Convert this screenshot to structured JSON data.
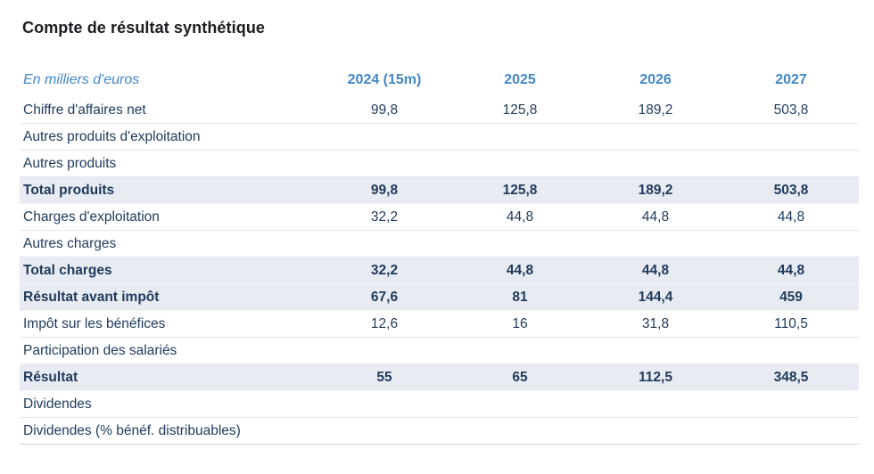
{
  "title": "Compte de résultat synthétique",
  "table": {
    "unit_label": "En milliers d'euros",
    "columns": [
      "2024 (15m)",
      "2025",
      "2026",
      "2027"
    ],
    "rows": [
      {
        "label": "Chiffre d'affaires net",
        "values": [
          "99,8",
          "125,8",
          "189,2",
          "503,8"
        ],
        "emphasis": false
      },
      {
        "label": "Autres produits d'exploitation",
        "values": [
          "",
          "",
          "",
          ""
        ],
        "emphasis": false
      },
      {
        "label": "Autres produits",
        "values": [
          "",
          "",
          "",
          ""
        ],
        "emphasis": false
      },
      {
        "label": "Total produits",
        "values": [
          "99,8",
          "125,8",
          "189,2",
          "503,8"
        ],
        "emphasis": true
      },
      {
        "label": "Charges d'exploitation",
        "values": [
          "32,2",
          "44,8",
          "44,8",
          "44,8"
        ],
        "emphasis": false
      },
      {
        "label": "Autres charges",
        "values": [
          "",
          "",
          "",
          ""
        ],
        "emphasis": false
      },
      {
        "label": "Total charges",
        "values": [
          "32,2",
          "44,8",
          "44,8",
          "44,8"
        ],
        "emphasis": true
      },
      {
        "label": "Résultat avant impôt",
        "values": [
          "67,6",
          "81",
          "144,4",
          "459"
        ],
        "emphasis": true
      },
      {
        "label": "Impôt sur les bénéfices",
        "values": [
          "12,6",
          "16",
          "31,8",
          "110,5"
        ],
        "emphasis": false
      },
      {
        "label": "Participation des salariés",
        "values": [
          "",
          "",
          "",
          ""
        ],
        "emphasis": false
      },
      {
        "label": "Résultat",
        "values": [
          "55",
          "65",
          "112,5",
          "348,5"
        ],
        "emphasis": true
      },
      {
        "label": "Dividendes",
        "values": [
          "",
          "",
          "",
          ""
        ],
        "emphasis": false
      },
      {
        "label": "Dividendes (% bénéf. distribuables)",
        "values": [
          "",
          "",
          "",
          ""
        ],
        "emphasis": false
      }
    ]
  },
  "colors": {
    "accent_blue": "#4287c8",
    "text_navy": "#1f3a5c",
    "row_highlight": "#e8ebf2",
    "row_border": "#e3e7ee",
    "title_color": "#1a1d21"
  }
}
